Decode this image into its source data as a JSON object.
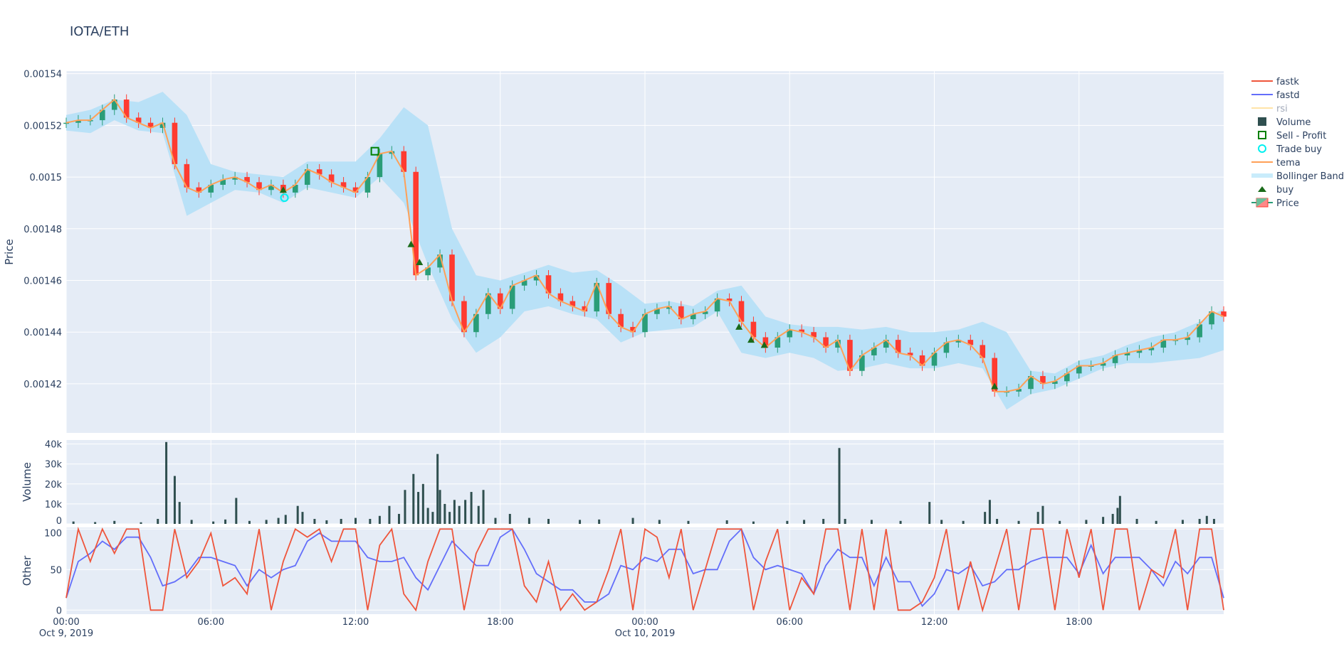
{
  "title": "IOTA/ETH",
  "colors": {
    "plot_bg": "#e5ecf6",
    "grid": "#ffffff",
    "increasing": "#2a9d78",
    "decreasing": "#ff3b30",
    "tema": "#ffa057",
    "bollinger": "#b9e1f7",
    "volume": "#2f4f4f",
    "fastk": "#ef553b",
    "fastd": "#636efa",
    "rsi": "#ffe4a8",
    "buy": "#1a6b1a",
    "trade_buy": "#00f0f0",
    "sell_profit": "#008000"
  },
  "legend": [
    {
      "label": "fastk",
      "icon": "line-red"
    },
    {
      "label": "fastd",
      "icon": "line-blue"
    },
    {
      "label": "rsi",
      "icon": "line-faded"
    },
    {
      "label": "Volume",
      "icon": "square-filled"
    },
    {
      "label": "Sell - Profit",
      "icon": "square-open"
    },
    {
      "label": "Trade buy",
      "icon": "circle-open"
    },
    {
      "label": "tema",
      "icon": "line-orange"
    },
    {
      "label": "Bollinger Band",
      "icon": "band"
    },
    {
      "label": "buy",
      "icon": "triangle-up"
    },
    {
      "label": "Price",
      "icon": "candlestick"
    }
  ],
  "chart_data": {
    "type": "candlestick-subplots",
    "title": "IOTA/ETH",
    "x_unit": "hours since Oct 9, 2019 00:00",
    "xlim": [
      0,
      48
    ],
    "x_ticks": [
      {
        "v": 0,
        "l1": "00:00",
        "l2": "Oct 9, 2019"
      },
      {
        "v": 6,
        "l1": "06:00",
        "l2": ""
      },
      {
        "v": 12,
        "l1": "12:00",
        "l2": ""
      },
      {
        "v": 18,
        "l1": "18:00",
        "l2": ""
      },
      {
        "v": 24,
        "l1": "00:00",
        "l2": "Oct 10, 2019"
      },
      {
        "v": 30,
        "l1": "06:00",
        "l2": ""
      },
      {
        "v": 36,
        "l1": "12:00",
        "l2": ""
      },
      {
        "v": 42,
        "l1": "18:00",
        "l2": ""
      }
    ],
    "price_panel": {
      "ylabel": "Price",
      "ylim": [
        0.001401,
        0.001541
      ],
      "y_ticks": [
        "0.00142",
        "0.00144",
        "0.00146",
        "0.00148",
        "0.0015",
        "0.00152",
        "0.00154"
      ],
      "close": [
        0.001521,
        0.001522,
        0.001522,
        0.001526,
        0.00153,
        0.001523,
        0.001521,
        0.001519,
        0.001521,
        0.001505,
        0.001496,
        0.001494,
        0.001497,
        0.001499,
        0.0015,
        0.001498,
        0.001495,
        0.001497,
        0.001494,
        0.001497,
        0.001503,
        0.001501,
        0.001498,
        0.001496,
        0.001494,
        0.0015,
        0.001509,
        0.00151,
        0.001502,
        0.001462,
        0.001465,
        0.00147,
        0.001452,
        0.00144,
        0.001447,
        0.001455,
        0.001449,
        0.001458,
        0.00146,
        0.001462,
        0.001455,
        0.001452,
        0.00145,
        0.001448,
        0.001459,
        0.001447,
        0.001442,
        0.00144,
        0.001447,
        0.001449,
        0.00145,
        0.001445,
        0.001447,
        0.001448,
        0.001453,
        0.001452,
        0.001444,
        0.001438,
        0.001434,
        0.001438,
        0.001441,
        0.00144,
        0.001438,
        0.001434,
        0.001437,
        0.001425,
        0.001431,
        0.001434,
        0.001437,
        0.001432,
        0.001431,
        0.001427,
        0.001432,
        0.001436,
        0.001437,
        0.001435,
        0.00143,
        0.001417,
        0.001417,
        0.001418,
        0.001423,
        0.00142,
        0.001421,
        0.001424,
        0.001427,
        0.001427,
        0.001428,
        0.001431,
        0.001432,
        0.001433,
        0.001434,
        0.001437,
        0.001437,
        0.001438,
        0.001443,
        0.001448,
        0.001446
      ],
      "tema": [
        0.001521,
        0.001522,
        0.001522,
        0.001526,
        0.00153,
        0.001523,
        0.001521,
        0.001519,
        0.001521,
        0.001505,
        0.001496,
        0.001494,
        0.001497,
        0.001499,
        0.0015,
        0.001498,
        0.001495,
        0.001497,
        0.001494,
        0.001497,
        0.001503,
        0.001501,
        0.001498,
        0.001496,
        0.001494,
        0.0015,
        0.001509,
        0.00151,
        0.001502,
        0.001462,
        0.001465,
        0.00147,
        0.001452,
        0.00144,
        0.001447,
        0.001455,
        0.001449,
        0.001458,
        0.00146,
        0.001462,
        0.001455,
        0.001452,
        0.00145,
        0.001448,
        0.001459,
        0.001447,
        0.001442,
        0.00144,
        0.001447,
        0.001449,
        0.00145,
        0.001445,
        0.001447,
        0.001448,
        0.001453,
        0.001452,
        0.001444,
        0.001438,
        0.001434,
        0.001438,
        0.001441,
        0.00144,
        0.001438,
        0.001434,
        0.001437,
        0.001425,
        0.001431,
        0.001434,
        0.001437,
        0.001432,
        0.001431,
        0.001427,
        0.001432,
        0.001436,
        0.001437,
        0.001435,
        0.00143,
        0.001417,
        0.001417,
        0.001418,
        0.001423,
        0.00142,
        0.001421,
        0.001424,
        0.001427,
        0.001427,
        0.001428,
        0.001431,
        0.001432,
        0.001433,
        0.001434,
        0.001437,
        0.001437,
        0.001438,
        0.001443,
        0.001448,
        0.001446
      ],
      "bb_upper": [
        0.001524,
        0.001526,
        0.00153,
        0.001529,
        0.001533,
        0.001524,
        0.001505,
        0.001502,
        0.001501,
        0.0015,
        0.001506,
        0.001506,
        0.001506,
        0.001515,
        0.001527,
        0.00152,
        0.00148,
        0.001462,
        0.00146,
        0.001463,
        0.001466,
        0.001463,
        0.001464,
        0.001458,
        0.001451,
        0.001452,
        0.00145,
        0.001456,
        0.001458,
        0.001446,
        0.001443,
        0.001442,
        0.001442,
        0.001441,
        0.001442,
        0.00144,
        0.00144,
        0.001441,
        0.001444,
        0.00144,
        0.001425,
        0.001424,
        0.001429,
        0.001431,
        0.001435,
        0.001438,
        0.00144,
        0.001444,
        0.001449
      ],
      "bb_lower": [
        0.001518,
        0.001517,
        0.001522,
        0.001518,
        0.001517,
        0.001485,
        0.00149,
        0.001495,
        0.001494,
        0.00149,
        0.001496,
        0.001494,
        0.001492,
        0.0015,
        0.00149,
        0.001466,
        0.001445,
        0.001432,
        0.001438,
        0.001448,
        0.00145,
        0.001447,
        0.001445,
        0.001436,
        0.00144,
        0.001441,
        0.001442,
        0.001448,
        0.001432,
        0.00143,
        0.001432,
        0.00143,
        0.001425,
        0.001426,
        0.001428,
        0.001426,
        0.001426,
        0.001428,
        0.001426,
        0.00141,
        0.001416,
        0.001418,
        0.001422,
        0.001426,
        0.001428,
        0.001428,
        0.001429,
        0.00143,
        0.001433
      ],
      "buy": [
        [
          9.0,
          0.001495
        ],
        [
          14.3,
          0.001474
        ],
        [
          14.65,
          0.001467
        ],
        [
          27.9,
          0.001442
        ],
        [
          28.4,
          0.001437
        ],
        [
          28.95,
          0.001435
        ],
        [
          38.5,
          0.001419
        ]
      ],
      "trade_buy": [
        [
          9.05,
          0.001492
        ]
      ],
      "sell_profit": [
        [
          12.8,
          0.00151
        ]
      ]
    },
    "volume_panel": {
      "ylabel": "Volume",
      "ylim": [
        0,
        42000
      ],
      "y_ticks": [
        {
          "v": 0,
          "l": "0"
        },
        {
          "v": 10000,
          "l": "10k"
        },
        {
          "v": 20000,
          "l": "20k"
        },
        {
          "v": 30000,
          "l": "30k"
        },
        {
          "v": 40000,
          "l": "40k"
        }
      ],
      "bars": [
        [
          0.3,
          1200
        ],
        [
          1.2,
          900
        ],
        [
          2.0,
          1500
        ],
        [
          3.1,
          800
        ],
        [
          3.8,
          2500
        ],
        [
          4.15,
          41000
        ],
        [
          4.5,
          24000
        ],
        [
          4.7,
          11000
        ],
        [
          5.2,
          2000
        ],
        [
          6.1,
          1200
        ],
        [
          6.6,
          2200
        ],
        [
          7.05,
          13000
        ],
        [
          7.6,
          1500
        ],
        [
          8.3,
          2000
        ],
        [
          8.8,
          3000
        ],
        [
          9.1,
          4500
        ],
        [
          9.6,
          9000
        ],
        [
          9.8,
          6000
        ],
        [
          10.3,
          2500
        ],
        [
          10.8,
          1800
        ],
        [
          11.4,
          2500
        ],
        [
          12.0,
          3000
        ],
        [
          12.6,
          2500
        ],
        [
          13.0,
          4000
        ],
        [
          13.4,
          9000
        ],
        [
          13.8,
          5000
        ],
        [
          14.05,
          17000
        ],
        [
          14.4,
          25000
        ],
        [
          14.6,
          16000
        ],
        [
          14.8,
          20000
        ],
        [
          15.0,
          8000
        ],
        [
          15.2,
          6000
        ],
        [
          15.4,
          35000
        ],
        [
          15.5,
          17000
        ],
        [
          15.7,
          10000
        ],
        [
          15.9,
          6000
        ],
        [
          16.1,
          12000
        ],
        [
          16.3,
          9000
        ],
        [
          16.55,
          12000
        ],
        [
          16.8,
          16000
        ],
        [
          17.1,
          9000
        ],
        [
          17.3,
          17000
        ],
        [
          17.8,
          3000
        ],
        [
          18.4,
          5000
        ],
        [
          19.2,
          3000
        ],
        [
          20.0,
          2500
        ],
        [
          21.3,
          2000
        ],
        [
          22.1,
          2200
        ],
        [
          23.5,
          3000
        ],
        [
          24.6,
          2000
        ],
        [
          25.8,
          1500
        ],
        [
          27.4,
          1800
        ],
        [
          28.5,
          1200
        ],
        [
          29.9,
          1500
        ],
        [
          30.6,
          2000
        ],
        [
          31.4,
          2500
        ],
        [
          32.06,
          38000
        ],
        [
          32.3,
          2500
        ],
        [
          33.4,
          2000
        ],
        [
          34.6,
          1500
        ],
        [
          35.8,
          11000
        ],
        [
          36.3,
          2000
        ],
        [
          37.2,
          1500
        ],
        [
          38.1,
          6000
        ],
        [
          38.3,
          12000
        ],
        [
          38.6,
          2500
        ],
        [
          39.5,
          1500
        ],
        [
          40.3,
          6000
        ],
        [
          40.5,
          9000
        ],
        [
          41.2,
          1500
        ],
        [
          42.3,
          2000
        ],
        [
          43.0,
          3500
        ],
        [
          43.4,
          5000
        ],
        [
          43.6,
          8000
        ],
        [
          43.7,
          14000
        ],
        [
          44.4,
          2500
        ],
        [
          45.2,
          1500
        ],
        [
          46.3,
          2000
        ],
        [
          47.0,
          2500
        ],
        [
          47.3,
          4000
        ],
        [
          47.6,
          2500
        ]
      ]
    },
    "other_panel": {
      "ylabel": "Other",
      "ylim": [
        -5,
        102
      ],
      "y_ticks": [
        {
          "v": 0,
          "l": "0"
        },
        {
          "v": 50,
          "l": "50"
        },
        {
          "v": 100,
          "l": "100"
        }
      ],
      "fastk": [
        15,
        100,
        60,
        100,
        70,
        100,
        100,
        0,
        0,
        100,
        40,
        60,
        95,
        30,
        40,
        20,
        100,
        0,
        60,
        100,
        90,
        100,
        60,
        100,
        100,
        0,
        80,
        100,
        20,
        0,
        60,
        100,
        100,
        0,
        70,
        100,
        100,
        100,
        30,
        10,
        60,
        0,
        20,
        0,
        10,
        50,
        100,
        0,
        100,
        90,
        40,
        100,
        0,
        50,
        100,
        100,
        100,
        0,
        60,
        100,
        0,
        40,
        20,
        100,
        100,
        0,
        100,
        0,
        100,
        0,
        0,
        10,
        40,
        100,
        0,
        60,
        0,
        50,
        100,
        0,
        100,
        100,
        0,
        100,
        40,
        100,
        0,
        100,
        100,
        0,
        50,
        40,
        100,
        0,
        100,
        100,
        0
      ],
      "fastd": [
        15,
        60,
        70,
        85,
        75,
        90,
        90,
        65,
        30,
        35,
        45,
        65,
        65,
        60,
        55,
        30,
        50,
        40,
        50,
        55,
        85,
        95,
        85,
        85,
        85,
        65,
        60,
        60,
        65,
        40,
        25,
        55,
        85,
        70,
        55,
        55,
        90,
        100,
        75,
        45,
        35,
        25,
        25,
        10,
        10,
        20,
        55,
        50,
        65,
        60,
        75,
        75,
        45,
        50,
        50,
        85,
        100,
        65,
        50,
        55,
        50,
        45,
        20,
        55,
        75,
        65,
        65,
        30,
        65,
        35,
        35,
        5,
        20,
        50,
        45,
        55,
        30,
        35,
        50,
        50,
        60,
        65,
        65,
        65,
        45,
        80,
        45,
        65,
        65,
        65,
        50,
        30,
        60,
        45,
        65,
        65,
        15
      ]
    }
  }
}
